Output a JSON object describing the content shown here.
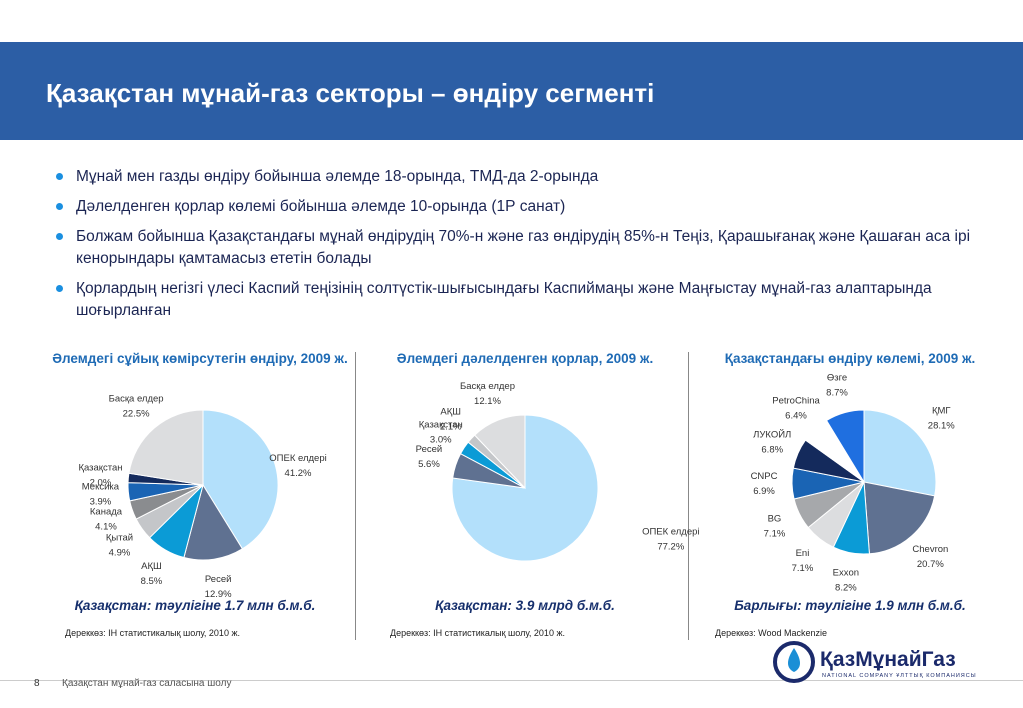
{
  "header": {
    "title": "Қазақстан мұнай-газ секторы – өндіру сегменті"
  },
  "bullets": [
    "Мұнай мен газды өндіру бойынша әлемде 18-орында, ТМД-да 2-орында",
    "Дәлелденген қорлар көлемі бойынша әлемде 10-орында (1Р санат)",
    "Болжам бойынша Қазақстандағы мұнай өндірудің 70%-н және газ өндірудің 85%-н Теңіз, Қарашығанақ және Қашаған аса ірі кенорындары қамтамасыз ететін болады",
    "Қорлардың негізгі үлесі Каспий теңізінің солтүстік-шығысындағы Каспиймаңы және Маңғыстау мұнай-газ алаптарында шоғырланған"
  ],
  "chart_data": [
    {
      "type": "pie",
      "title": "Әлемдегі сұйық көмірсутегін өндіру, 2009 ж.",
      "categories": [
        "ОПЕК елдері",
        "Ресей",
        "АҚШ",
        "Қытай",
        "Канада",
        "Мексика",
        "Қазақстан",
        "Басқа елдер"
      ],
      "values": [
        41.2,
        12.9,
        8.5,
        4.9,
        4.1,
        3.9,
        2.0,
        22.5
      ],
      "value_labels": [
        "41.2%",
        "12.9%",
        "8.5%",
        "4.9%",
        "4.1%",
        "3.9%",
        "2.0%",
        "22.5%"
      ],
      "colors": [
        "#b3e0fb",
        "#5f7191",
        "#0b9bd6",
        "#c4c6c9",
        "#8a8c8f",
        "#1a64b4",
        "#142a5c",
        "#dcdddf"
      ],
      "caption": "Қазақстан: тәулігіне 1.7 млн б.м.б.",
      "source": "Дереккөз: IH статистикалық шолу, 2010 ж."
    },
    {
      "type": "pie",
      "title": "Әлемдегі дәлелденген қорлар, 2009 ж.",
      "categories": [
        "ОПЕК елдері",
        "Ресей",
        "Қазақстан",
        "АҚШ",
        "Басқа елдер"
      ],
      "values": [
        77.2,
        5.6,
        3.0,
        2.1,
        12.1
      ],
      "value_labels": [
        "77.2%",
        "5.6%",
        "3.0%",
        "2.1%",
        "12.1%"
      ],
      "colors": [
        "#b3e0fb",
        "#5f7191",
        "#0b9bd6",
        "#c4c6c9",
        "#dcdddf"
      ],
      "caption": "Қазақстан: 3.9 млрд б.м.б.",
      "source": "Дереккөз: IH статистикалық шолу, 2010 ж."
    },
    {
      "type": "pie",
      "title": "Қазақстандағы өндіру көлемі, 2009 ж.",
      "categories": [
        "ҚМГ",
        "Chevron",
        "Exxon",
        "Eni",
        "BG",
        "CNPC",
        "ЛУКОЙЛ",
        "PetroChina",
        "Өзге"
      ],
      "values": [
        28.1,
        20.7,
        8.2,
        7.1,
        7.1,
        6.9,
        6.8,
        6.4,
        8.7
      ],
      "value_labels": [
        "28.1%",
        "20.7%",
        "8.2%",
        "7.1%",
        "7.1%",
        "6.9%",
        "6.8%",
        "6.4%",
        "8.7%"
      ],
      "colors": [
        "#b3e0fb",
        "#5f7191",
        "#0b9bd6",
        "#dcdddf",
        "#a6a8ab",
        "#1a64b4",
        "#142a5c",
        "#ffffff",
        "#1f6fe0"
      ],
      "caption": "Барлығы: тәулігіне 1.9 млн б.м.б.",
      "source": "Дереккөз: Wood Mackenzie"
    }
  ],
  "footer": {
    "page": "8",
    "text": "Қазақстан мұнай-газ саласына шолу"
  },
  "logo": {
    "name": "ҚазМұнайГаз",
    "tagline": "NATIONAL COMPANY ҰЛТТЫҚ КОМПАНИЯСЫ"
  }
}
